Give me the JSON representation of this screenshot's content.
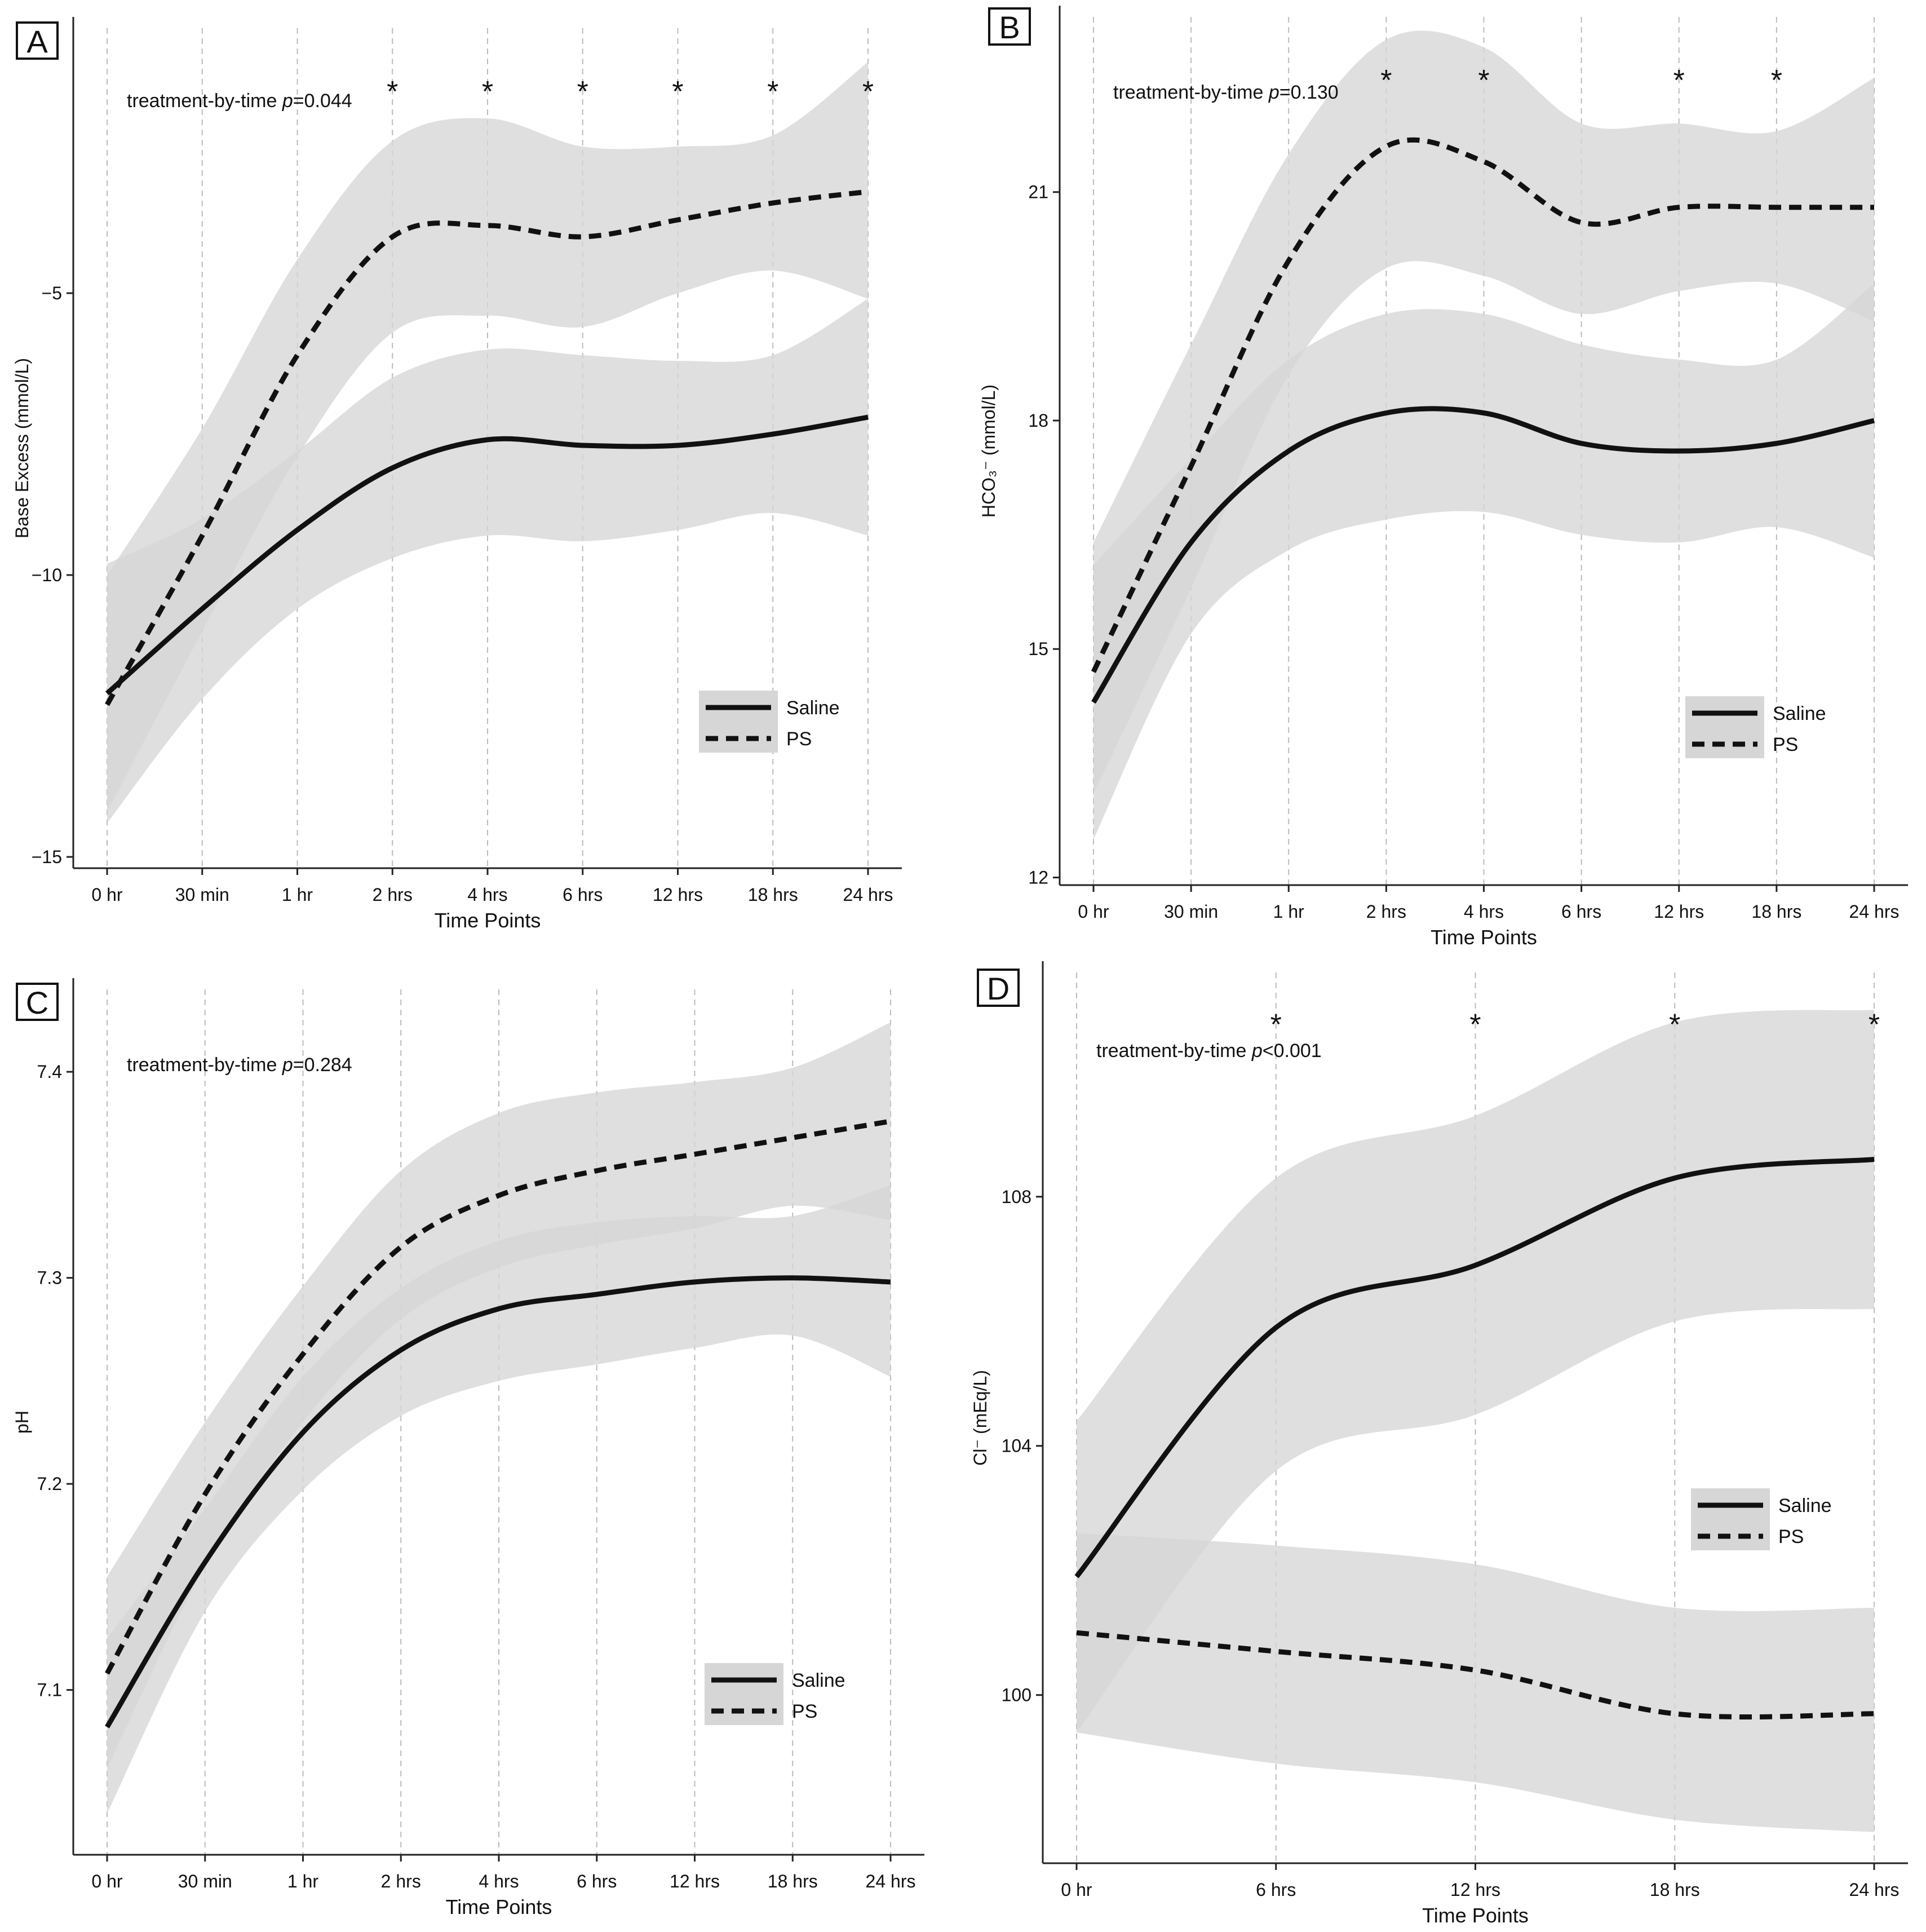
{
  "colors": {
    "band": "#d6d6d6",
    "line": "#111111",
    "grid": "#bbbbbb",
    "legend_bg": "#d6d6d6"
  },
  "chart_data": [
    {
      "panel": "A",
      "type": "line",
      "annotation": {
        "prefix": "treatment-by-time ",
        "p": "p",
        "value": "=0.044"
      },
      "ylabel": "Base Excess (mmol/L)",
      "xlabel": "Time Points",
      "categories": [
        "0 hr",
        "30 min",
        "1 hr",
        "2 hrs",
        "4 hrs",
        "6 hrs",
        "12 hrs",
        "18 hrs",
        "24 hrs"
      ],
      "ylim": [
        -15.2,
        -0.3
      ],
      "yticks": [
        {
          "value": -15,
          "label": "−15"
        },
        {
          "value": -10,
          "label": "−10"
        },
        {
          "value": -5,
          "label": "−5"
        }
      ],
      "significant": [
        "2 hrs",
        "4 hrs",
        "6 hrs",
        "12 hrs",
        "18 hrs",
        "24 hrs"
      ],
      "legend": [
        "Saline",
        "PS"
      ],
      "series": [
        {
          "name": "Saline",
          "style": "solid",
          "values": [
            -12.1,
            -10.6,
            -9.2,
            -8.1,
            -7.6,
            -7.7,
            -7.7,
            -7.5,
            -7.2
          ],
          "lower": [
            -14.4,
            -12.2,
            -10.6,
            -9.7,
            -9.3,
            -9.4,
            -9.2,
            -8.9,
            -9.3
          ],
          "upper": [
            -9.8,
            -9.0,
            -7.8,
            -6.5,
            -6.0,
            -6.1,
            -6.2,
            -6.1,
            -5.1
          ]
        },
        {
          "name": "PS",
          "style": "dashed",
          "values": [
            -12.3,
            -9.3,
            -6.1,
            -4.0,
            -3.8,
            -4.0,
            -3.7,
            -3.4,
            -3.2
          ],
          "lower": [
            -14.2,
            -11.0,
            -7.9,
            -5.7,
            -5.4,
            -5.6,
            -5.0,
            -4.6,
            -5.1
          ],
          "upper": [
            -10.0,
            -7.4,
            -4.4,
            -2.3,
            -1.9,
            -2.4,
            -2.4,
            -2.2,
            -0.9
          ]
        }
      ]
    },
    {
      "panel": "B",
      "type": "line",
      "annotation": {
        "prefix": "treatment-by-time ",
        "p": "p",
        "value": "=0.130"
      },
      "ylabel": "HCO₃⁻ (mmol/L)",
      "xlabel": "Time Points",
      "categories": [
        "0 hr",
        "30 min",
        "1 hr",
        "2 hrs",
        "4 hrs",
        "6 hrs",
        "12 hrs",
        "18 hrs",
        "24 hrs"
      ],
      "ylim": [
        11.9,
        23.3
      ],
      "yticks": [
        {
          "value": 12,
          "label": "12"
        },
        {
          "value": 15,
          "label": "15"
        },
        {
          "value": 18,
          "label": "18"
        },
        {
          "value": 21,
          "label": "21"
        }
      ],
      "significant_positions": [
        3,
        4,
        6,
        7
      ],
      "legend": [
        "Saline",
        "PS"
      ],
      "series": [
        {
          "name": "Saline",
          "style": "solid",
          "values": [
            14.3,
            16.4,
            17.6,
            18.1,
            18.1,
            17.7,
            17.6,
            17.7,
            18.0
          ],
          "lower": [
            12.5,
            15.2,
            16.3,
            16.7,
            16.8,
            16.5,
            16.4,
            16.6,
            16.2
          ],
          "upper": [
            16.1,
            17.5,
            18.8,
            19.4,
            19.4,
            19.0,
            18.8,
            18.8,
            19.8
          ]
        },
        {
          "name": "PS",
          "style": "dashed",
          "values": [
            14.7,
            17.4,
            20.1,
            21.6,
            21.4,
            20.6,
            20.8,
            20.8,
            20.8
          ],
          "lower": [
            13.1,
            15.8,
            18.6,
            20.0,
            19.9,
            19.4,
            19.7,
            19.8,
            19.3
          ],
          "upper": [
            16.4,
            19.0,
            21.5,
            23.0,
            22.9,
            21.9,
            21.9,
            21.8,
            22.5
          ]
        }
      ]
    },
    {
      "panel": "C",
      "type": "line",
      "annotation": {
        "prefix": "treatment-by-time ",
        "p": "p",
        "value": "=0.284"
      },
      "ylabel": "pH",
      "xlabel": "Time Points",
      "categories": [
        "0 hr",
        "30 min",
        "1 hr",
        "2 hrs",
        "4 hrs",
        "6 hrs",
        "12 hrs",
        "18 hrs",
        "24 hrs"
      ],
      "ylim": [
        7.02,
        7.44
      ],
      "yticks": [
        {
          "value": 7.1,
          "label": "7.1"
        },
        {
          "value": 7.2,
          "label": "7.2"
        },
        {
          "value": 7.3,
          "label": "7.3"
        },
        {
          "value": 7.4,
          "label": "7.4"
        }
      ],
      "significant": [],
      "legend": [
        "Saline",
        "PS"
      ],
      "series": [
        {
          "name": "Saline",
          "style": "solid",
          "values": [
            7.082,
            7.162,
            7.225,
            7.265,
            7.285,
            7.292,
            7.298,
            7.3,
            7.298
          ],
          "lower": [
            7.04,
            7.138,
            7.197,
            7.233,
            7.25,
            7.258,
            7.266,
            7.272,
            7.252
          ],
          "upper": [
            7.125,
            7.188,
            7.252,
            7.295,
            7.318,
            7.327,
            7.33,
            7.33,
            7.345
          ]
        },
        {
          "name": "PS",
          "style": "dashed",
          "values": [
            7.108,
            7.195,
            7.263,
            7.315,
            7.34,
            7.352,
            7.36,
            7.368,
            7.376
          ],
          "lower": [
            7.062,
            7.16,
            7.23,
            7.28,
            7.305,
            7.316,
            7.324,
            7.335,
            7.328
          ],
          "upper": [
            7.155,
            7.23,
            7.296,
            7.352,
            7.38,
            7.39,
            7.395,
            7.402,
            7.424
          ]
        }
      ]
    },
    {
      "panel": "D",
      "type": "line",
      "annotation": {
        "prefix": "treatment-by-time ",
        "p": "p",
        "value": "<0.001"
      },
      "ylabel": "Cl⁻ (mEq/L)",
      "xlabel": "Time Points",
      "categories": [
        "0 hr",
        "6 hrs",
        "12 hrs",
        "18 hrs",
        "24 hrs"
      ],
      "ylim": [
        97.3,
        111.6
      ],
      "yticks": [
        {
          "value": 100,
          "label": "100"
        },
        {
          "value": 104,
          "label": "104"
        },
        {
          "value": 108,
          "label": "108"
        }
      ],
      "significant": [
        "6 hrs",
        "12 hrs",
        "18 hrs",
        "24 hrs"
      ],
      "legend": [
        "Saline",
        "PS"
      ],
      "series": [
        {
          "name": "Saline",
          "style": "solid",
          "values": [
            101.9,
            105.9,
            106.9,
            108.3,
            108.6
          ],
          "lower": [
            99.4,
            103.6,
            104.5,
            106.0,
            106.2
          ],
          "upper": [
            104.4,
            108.3,
            109.3,
            110.8,
            111.0
          ]
        },
        {
          "name": "PS",
          "style": "dashed",
          "values": [
            101.0,
            100.7,
            100.4,
            99.7,
            99.7
          ],
          "lower": [
            99.4,
            98.9,
            98.6,
            98.0,
            97.8
          ],
          "upper": [
            102.6,
            102.4,
            102.1,
            101.4,
            101.4
          ]
        }
      ]
    }
  ]
}
